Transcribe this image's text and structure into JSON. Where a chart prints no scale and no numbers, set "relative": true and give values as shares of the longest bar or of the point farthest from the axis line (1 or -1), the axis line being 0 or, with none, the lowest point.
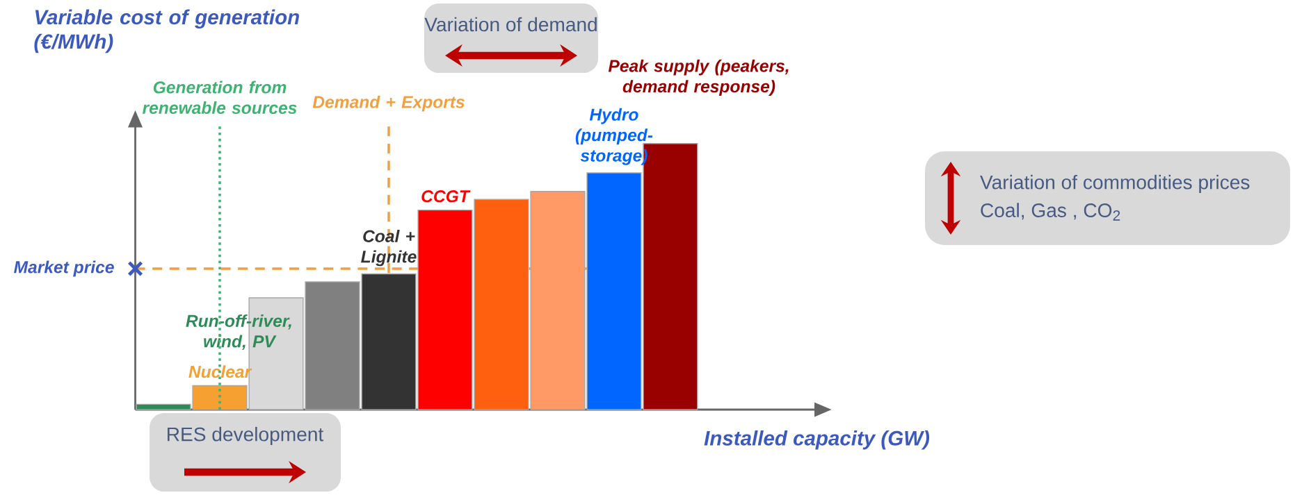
{
  "chart_data": {
    "type": "bar",
    "relative": true,
    "xlabel": "Installed capacity (GW)",
    "ylabel": "Variable cost of generation (€/MWh)",
    "categories": [
      null,
      "Nuclear",
      null,
      null,
      "Coal + Lignite",
      "CCGT",
      null,
      null,
      "Hydro (pumped-storage)",
      null
    ],
    "values": [
      0.02,
      0.09,
      0.42,
      0.48,
      0.51,
      0.75,
      0.79,
      0.82,
      0.89,
      1
    ],
    "colors": [
      "#2e8b57",
      "#f5a030",
      "#d9d9d9",
      "#808080",
      "#333333",
      "#ff0000",
      "#ff6010",
      "#ff9966",
      "#0066ff",
      "#990000"
    ],
    "ref_lines": [
      {
        "axis": "y",
        "value": 0.53,
        "label": "Market price",
        "color": "#f0a040",
        "line_style": "dashed"
      },
      {
        "axis": "x",
        "value": "Coal + Lignite",
        "label": "Demand + Exports",
        "color": "#f0a040",
        "line_style": "dashed"
      }
    ],
    "annotations": [
      "Variation of demand",
      "RES development",
      "Variation of commodities prices",
      "Coal, Gas , CO$_{2}$",
      "Run-off-river, wind, PV",
      "Peak supply (peakers, demand response)",
      "Generation from renewable sources"
    ]
  }
}
